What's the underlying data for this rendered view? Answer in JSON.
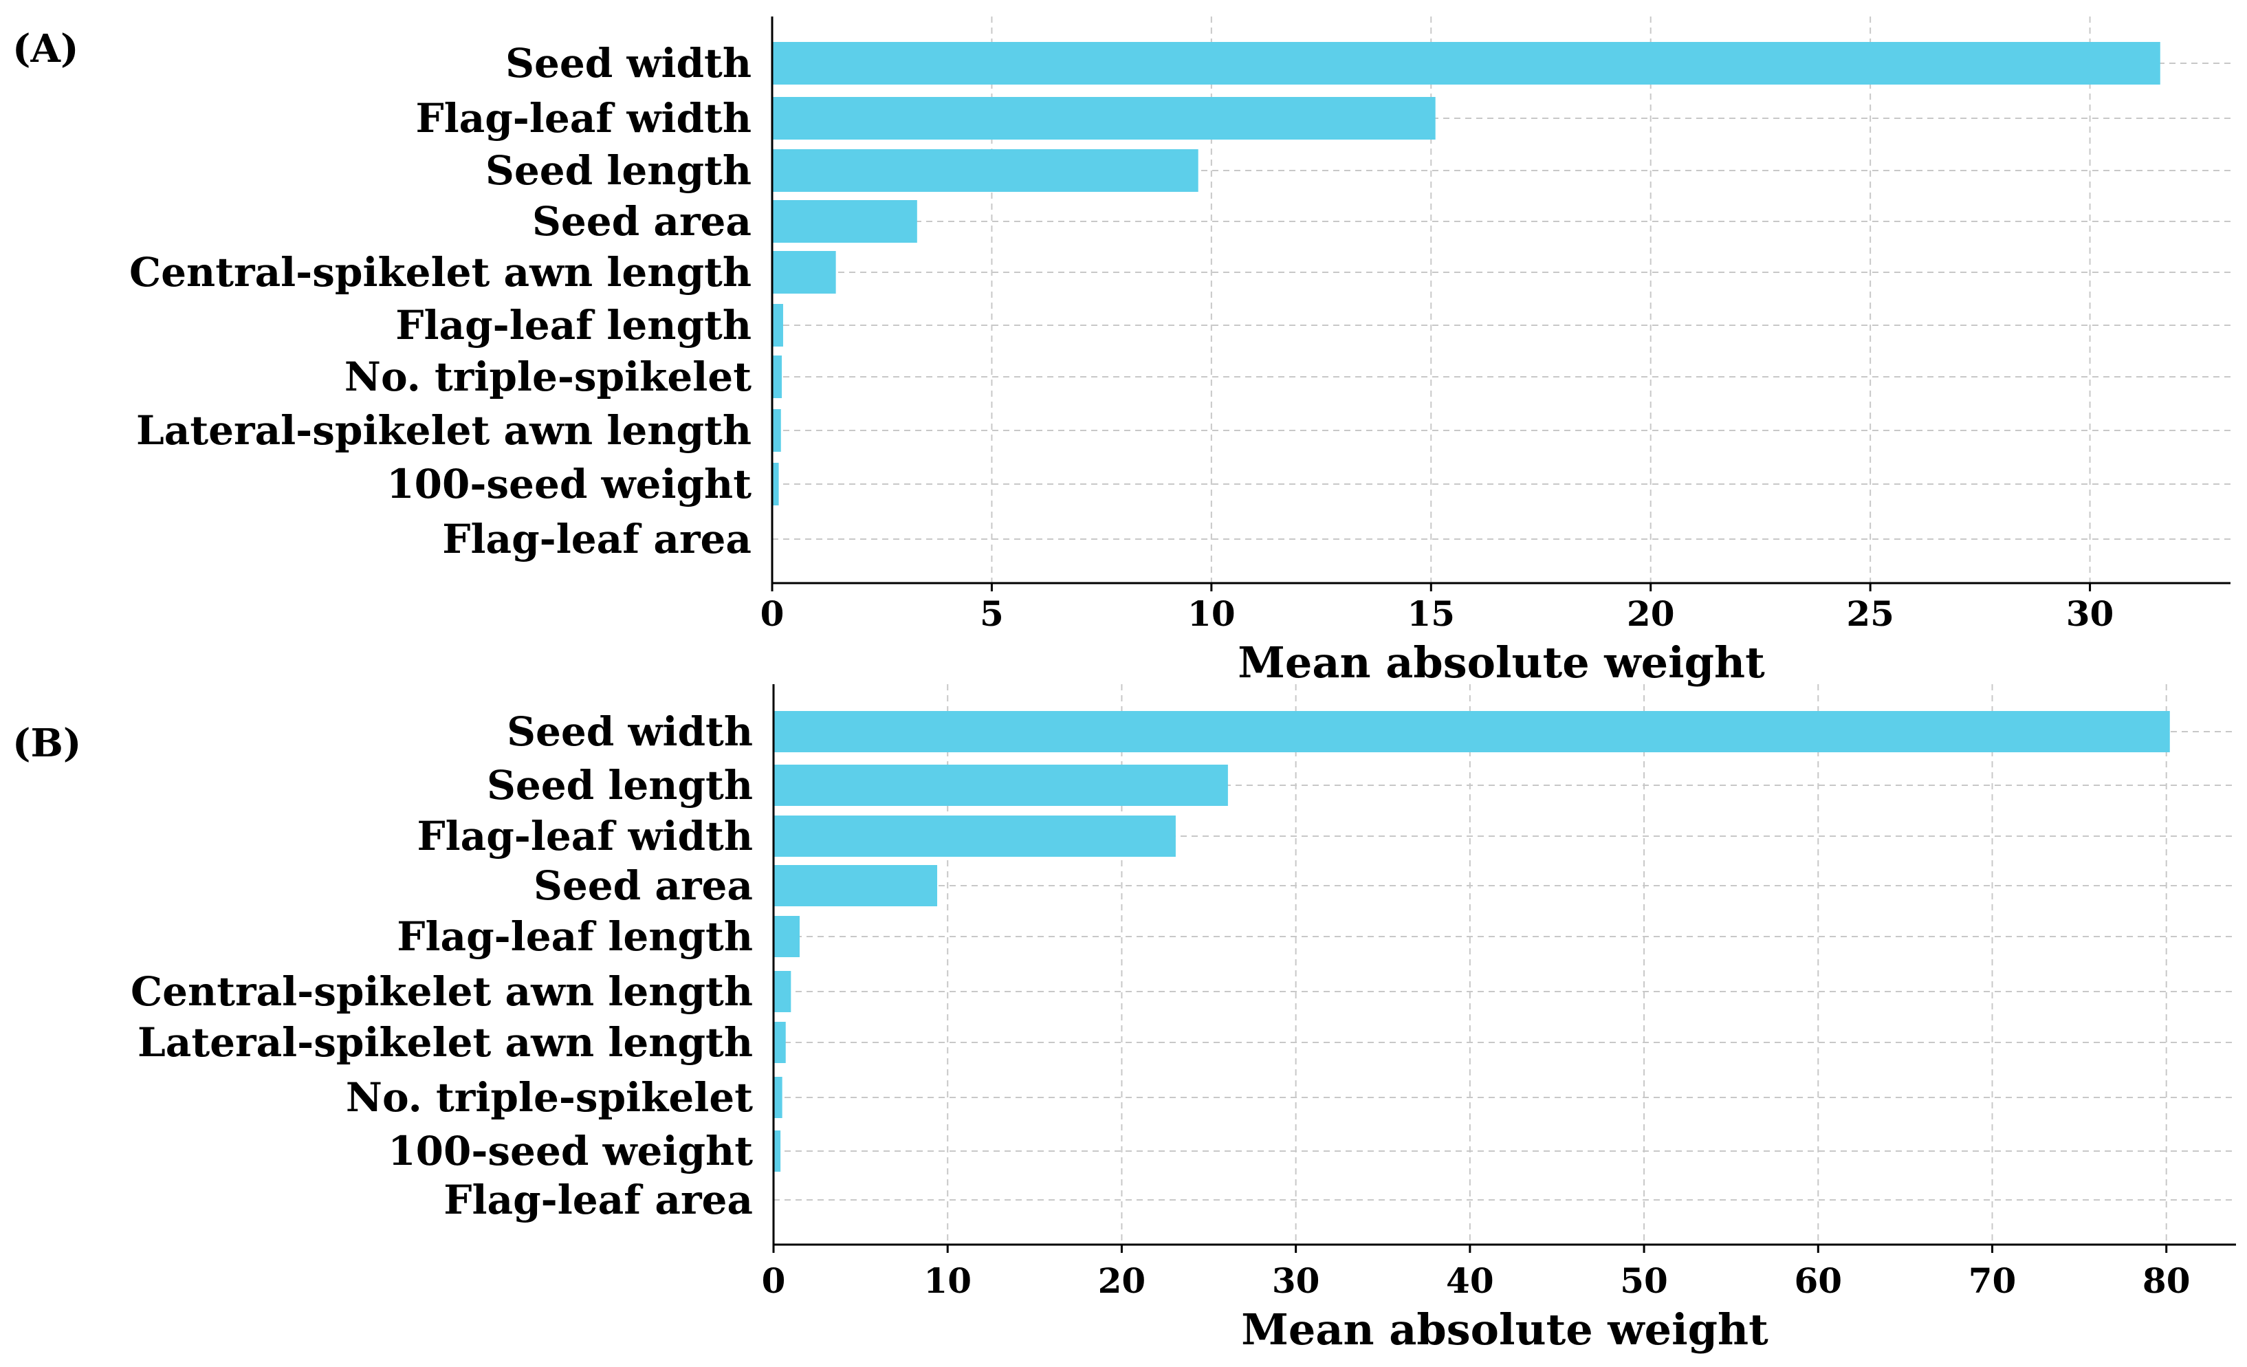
{
  "chart_data": [
    {
      "panel": "(A)",
      "type": "bar",
      "orientation": "horizontal",
      "categories": [
        "Seed width",
        "Flag-leaf width",
        "Seed length",
        "Seed area",
        "Central-spikelet awn length",
        "Flag-leaf length",
        "No. triple-spikelet",
        "Lateral-spikelet awn length",
        "100-seed weight",
        "Flag-leaf area"
      ],
      "values": [
        31.6,
        15.1,
        9.7,
        3.3,
        1.45,
        0.25,
        0.22,
        0.2,
        0.15,
        0.0
      ],
      "xlabel": "Mean absolute weight",
      "xlim": [
        0,
        33.2
      ],
      "xticks": [
        0,
        5,
        10,
        15,
        20,
        25,
        30
      ],
      "grid": true,
      "bar_color": "#5dcfea"
    },
    {
      "panel": "(B)",
      "type": "bar",
      "orientation": "horizontal",
      "categories": [
        "Seed width",
        "Seed length",
        "Flag-leaf width",
        "Seed area",
        "Flag-leaf length",
        "Central-spikelet awn length",
        "Lateral-spikelet awn length",
        "No. triple-spikelet",
        "100-seed weight",
        "Flag-leaf area"
      ],
      "values": [
        80.2,
        26.1,
        23.1,
        9.4,
        1.5,
        1.0,
        0.7,
        0.5,
        0.4,
        0.0
      ],
      "xlabel": "Mean absolute weight",
      "xlim": [
        0,
        84
      ],
      "xticks": [
        0,
        10,
        20,
        30,
        40,
        50,
        60,
        70,
        80
      ],
      "grid": true,
      "bar_color": "#5dcfea"
    }
  ]
}
